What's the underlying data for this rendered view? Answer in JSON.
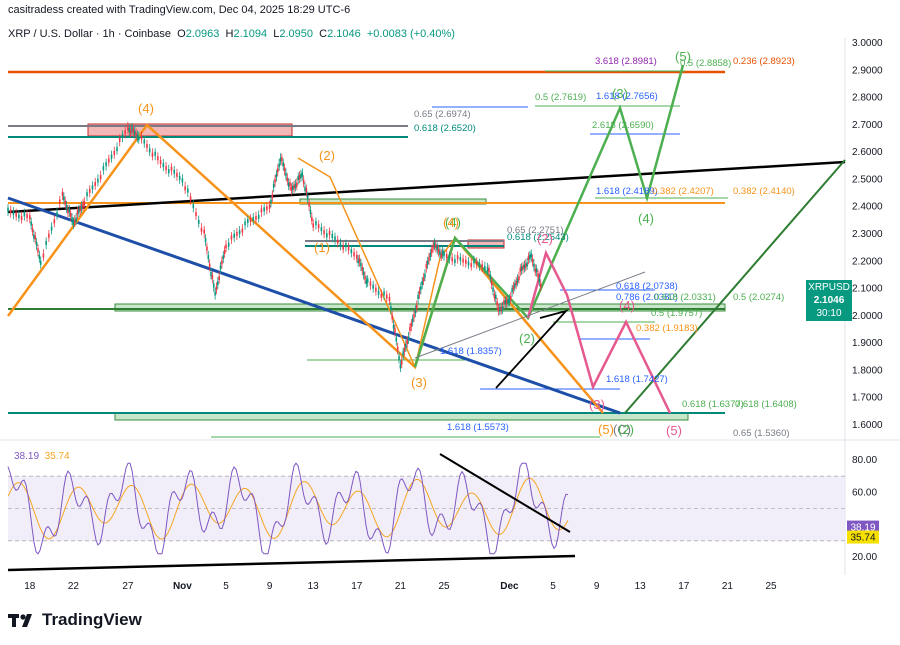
{
  "header": {
    "attribution": "casitradess created with TradingView.com, Dec 04, 2025 18:29 UTC-6",
    "symbol": "XRP / U.S. Dollar · 1h · Coinbase",
    "open_label": "O",
    "open": "2.0963",
    "high_label": "H",
    "high": "2.1094",
    "low_label": "L",
    "low": "2.0950",
    "close_label": "C",
    "close": "2.1046",
    "change": "+0.0083 (+0.40%)"
  },
  "price_tag": {
    "symbol": "XRPUSD",
    "price": "2.1046",
    "countdown": "30:10"
  },
  "rsi": {
    "value": "38.19",
    "ma": "35.74",
    "value_num": 38.19,
    "ma_num": 35.74,
    "ticks": [
      "80.00",
      "60.00",
      "20.00"
    ]
  },
  "logo": {
    "text": "TradingView"
  },
  "colors": {
    "up": "#089981",
    "orange": "#f7931a",
    "green": "#4caf50",
    "pink": "#e5598f",
    "blue": "#1e4fa8",
    "rsi_line": "#7e57c2",
    "rsi_ma": "#f5a623"
  },
  "chart_data": {
    "type": "line",
    "y_axis_ticks": [
      "3.0000",
      "2.9000",
      "2.8000",
      "2.7000",
      "2.6000",
      "2.5000",
      "2.4000",
      "2.3000",
      "2.2000",
      "2.1000",
      "2.0000",
      "1.9000",
      "1.8000",
      "1.7000",
      "1.6000"
    ],
    "ylim": [
      1.56,
      3.03
    ],
    "x_axis_ticks": [
      "18",
      "22",
      "27",
      "Nov",
      "5",
      "9",
      "13",
      "17",
      "21",
      "25",
      "Dec",
      "5",
      "9",
      "13",
      "17",
      "21",
      "25"
    ],
    "price_path": [
      [
        "2025-10-16",
        2.38
      ],
      [
        "2025-10-18",
        2.36
      ],
      [
        "2025-10-19",
        2.2
      ],
      [
        "2025-10-21",
        2.44
      ],
      [
        "2025-10-22",
        2.34
      ],
      [
        "2025-10-23",
        2.42
      ],
      [
        "2025-10-25",
        2.55
      ],
      [
        "2025-10-27",
        2.69
      ],
      [
        "2025-10-28",
        2.66
      ],
      [
        "2025-10-30",
        2.56
      ],
      [
        "2025-11-01",
        2.5
      ],
      [
        "2025-11-03",
        2.3
      ],
      [
        "2025-11-04",
        2.08
      ],
      [
        "2025-11-05",
        2.26
      ],
      [
        "2025-11-07",
        2.34
      ],
      [
        "2025-11-09",
        2.4
      ],
      [
        "2025-11-10",
        2.58
      ],
      [
        "2025-11-11",
        2.46
      ],
      [
        "2025-11-12",
        2.52
      ],
      [
        "2025-11-13",
        2.34
      ],
      [
        "2025-11-15",
        2.28
      ],
      [
        "2025-11-17",
        2.22
      ],
      [
        "2025-11-18",
        2.12
      ],
      [
        "2025-11-20",
        2.06
      ],
      [
        "2025-11-21",
        1.82
      ],
      [
        "2025-11-22",
        1.96
      ],
      [
        "2025-11-23",
        2.12
      ],
      [
        "2025-11-24",
        2.26
      ],
      [
        "2025-11-25",
        2.22
      ],
      [
        "2025-11-27",
        2.2
      ],
      [
        "2025-11-29",
        2.18
      ],
      [
        "2025-11-30",
        2.02
      ],
      [
        "2025-12-01",
        2.06
      ],
      [
        "2025-12-02",
        2.16
      ],
      [
        "2025-12-03",
        2.22
      ],
      [
        "2025-12-04",
        2.1
      ]
    ],
    "horizontal_levels": [
      {
        "label": "3.618 (2.8981)",
        "y": 2.8981,
        "color": "#8e24aa"
      },
      {
        "label": "0.236 (2.8923)",
        "y": 2.8923,
        "color": "#e65100"
      },
      {
        "label": "0.5 (2.8858)",
        "y": 2.8858,
        "color": "#4caf50"
      },
      {
        "label": "1.618 (2.7656)",
        "y": 2.7656,
        "color": "#2962ff"
      },
      {
        "label": "0.5 (2.7619)",
        "y": 2.7619,
        "color": "#4caf50"
      },
      {
        "label": "0.65 (2.6974)",
        "y": 2.6974,
        "color": "#787b86"
      },
      {
        "label": "2.618 (2.6590)",
        "y": 2.659,
        "color": "#4caf50"
      },
      {
        "label": "0.618 (2.6520)",
        "y": 2.652,
        "color": "#00897b"
      },
      {
        "label": "1.618 (2.4189)",
        "y": 2.4189,
        "color": "#2962ff"
      },
      {
        "label": "0.382 (2.4207)",
        "y": 2.4207,
        "color": "#f7931a"
      },
      {
        "label": "0.382 (2.4140)",
        "y": 2.414,
        "color": "#f7931a"
      },
      {
        "label": "0.65 (2.2751)",
        "y": 2.2751,
        "color": "#787b86"
      },
      {
        "label": "0.618 (2.2543)",
        "y": 2.2543,
        "color": "#00897b"
      },
      {
        "label": "0.618 (2.0738)",
        "y": 2.0738,
        "color": "#2962ff"
      },
      {
        "label": "0.786 (2.0380)",
        "y": 2.038,
        "color": "#2962ff"
      },
      {
        "label": "0.618 (2.0331)",
        "y": 2.0331,
        "color": "#4caf50"
      },
      {
        "label": "0.5 (2.0274)",
        "y": 2.0274,
        "color": "#4caf50"
      },
      {
        "label": "0.5 (1.9757)",
        "y": 1.9757,
        "color": "#4caf50"
      },
      {
        "label": "0.382 (1.9183)",
        "y": 1.9183,
        "color": "#f7931a"
      },
      {
        "label": "1.618 (1.8357)",
        "y": 1.8357,
        "color": "#2962ff"
      },
      {
        "label": "1.618 (1.7427)",
        "y": 1.7427,
        "color": "#2962ff"
      },
      {
        "label": "0.618 (1.6377)",
        "y": 1.6377,
        "color": "#4caf50"
      },
      {
        "label": "0.618 (1.6408)",
        "y": 1.6408,
        "color": "#4caf50"
      },
      {
        "label": "1.618 (1.5573)",
        "y": 1.5573,
        "color": "#2962ff"
      },
      {
        "label": "0.65 (1.5360)",
        "y": 1.536,
        "color": "#787b86"
      }
    ],
    "wave_labels": [
      {
        "text": "(4)",
        "color": "#f7931a"
      },
      {
        "text": "(2)",
        "color": "#f7931a"
      },
      {
        "text": "(1)",
        "color": "#f7931a"
      },
      {
        "text": "(3)",
        "color": "#f7931a"
      },
      {
        "text": "(4)",
        "color": "#4caf50"
      },
      {
        "text": "(4)",
        "color": "#f7931a"
      },
      {
        "text": "(2)",
        "color": "#4caf50"
      },
      {
        "text": "(2)",
        "color": "#e5598f"
      },
      {
        "text": "(3)",
        "color": "#4caf50"
      },
      {
        "text": "(4)",
        "color": "#4caf50"
      },
      {
        "text": "(5)",
        "color": "#4caf50"
      },
      {
        "text": "(3)",
        "color": "#e5598f"
      },
      {
        "text": "(4)",
        "color": "#e5598f"
      },
      {
        "text": "(5)",
        "color": "#e5598f"
      },
      {
        "text": "(5)",
        "color": "#f7931a"
      },
      {
        "text": "(C)",
        "color": "#787b86"
      },
      {
        "text": "(2)",
        "color": "#4caf50"
      }
    ]
  }
}
